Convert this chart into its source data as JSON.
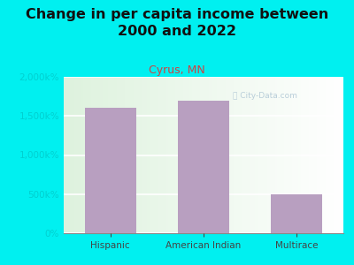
{
  "title": "Change in per capita income between\n2000 and 2022",
  "subtitle": "Cyrus, MN",
  "categories": [
    "Hispanic",
    "American Indian",
    "Multirace"
  ],
  "values": [
    1600,
    1700,
    500
  ],
  "bar_color": "#b89fc0",
  "title_fontsize": 11.5,
  "subtitle_fontsize": 9,
  "subtitle_color": "#cc4444",
  "title_color": "#111111",
  "background_color": "#00f0f0",
  "ylim": [
    0,
    2000
  ],
  "yticks": [
    0,
    500,
    1000,
    1500,
    2000
  ],
  "watermark": "City-Data.com",
  "ytick_color": "#00d0d0",
  "xtick_color": "#444444",
  "plot_bg": "#f2f7ec"
}
